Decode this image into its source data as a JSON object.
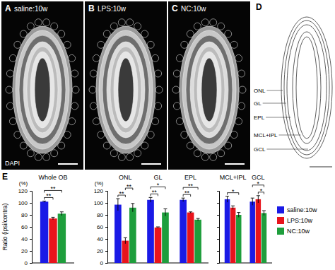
{
  "figure": {
    "image_panels": [
      {
        "letter": "A",
        "label": "saline:10w",
        "stain": "DAPI"
      },
      {
        "letter": "B",
        "label": "LPS:10w"
      },
      {
        "letter": "C",
        "label": "NC:10w"
      }
    ],
    "diagram": {
      "letter": "D",
      "layers": [
        "ONL",
        "GL",
        "EPL",
        "MCL+IPL",
        "GCL"
      ]
    },
    "chart_letter": "E"
  },
  "chart_data": [
    {
      "type": "bar",
      "y_label": "Ratio (ipsi/contra)",
      "y_unit": "(%)",
      "categories": [
        "Whole OB"
      ],
      "series": [
        {
          "color": "#1a1ae6",
          "values": [
            102
          ],
          "errors": [
            1
          ]
        },
        {
          "color": "#e8141c",
          "values": [
            74
          ],
          "errors": [
            2
          ]
        },
        {
          "color": "#1e9e3c",
          "values": [
            82
          ],
          "errors": [
            3
          ]
        }
      ],
      "ylim": [
        0,
        120
      ],
      "yticks": [
        0,
        20,
        40,
        60,
        80,
        100,
        120
      ],
      "annotations": [
        {
          "group": 0,
          "pair": [
            0,
            1
          ],
          "label": "**"
        },
        {
          "group": 0,
          "pair": [
            0,
            2
          ],
          "label": "**"
        }
      ]
    },
    {
      "type": "bar",
      "y_unit": "(%)",
      "categories": [
        "ONL",
        "GL",
        "EPL"
      ],
      "series": [
        {
          "color": "#1a1ae6",
          "values": [
            97,
            105,
            105
          ],
          "errors": [
            10,
            4,
            3
          ]
        },
        {
          "color": "#e8141c",
          "values": [
            37,
            59,
            84
          ],
          "errors": [
            5,
            1,
            1
          ]
        },
        {
          "color": "#1e9e3c",
          "values": [
            92,
            84,
            72
          ],
          "errors": [
            7,
            6,
            2
          ]
        }
      ],
      "ylim": [
        0,
        120
      ],
      "yticks": [
        0,
        20,
        40,
        60,
        80,
        100,
        120
      ],
      "annotations": [
        {
          "group": 0,
          "pair": [
            0,
            1
          ],
          "label": "**"
        },
        {
          "group": 0,
          "pair": [
            1,
            2
          ],
          "label": "**"
        },
        {
          "group": 1,
          "pair": [
            0,
            1
          ],
          "label": "**"
        },
        {
          "group": 1,
          "pair": [
            0,
            2
          ],
          "label": "*"
        },
        {
          "group": 2,
          "pair": [
            0,
            1
          ],
          "label": "**"
        },
        {
          "group": 2,
          "pair": [
            0,
            2
          ],
          "label": "**"
        }
      ]
    },
    {
      "type": "bar",
      "categories": [
        "MCL+IPL",
        "GCL"
      ],
      "series": [
        {
          "name": "saline:10w",
          "color": "#1a1ae6",
          "values": [
            106,
            102
          ],
          "errors": [
            5,
            6
          ]
        },
        {
          "name": "LPS:10w",
          "color": "#e8141c",
          "values": [
            92,
            106
          ],
          "errors": [
            3,
            6
          ]
        },
        {
          "name": "NC:10w",
          "color": "#1e9e3c",
          "values": [
            80,
            83
          ],
          "errors": [
            4,
            4
          ]
        }
      ],
      "ylim": [
        0,
        120
      ],
      "yticks": [
        0,
        20,
        40,
        60,
        80,
        100,
        120
      ],
      "tick_labels": "x",
      "legend": "right",
      "annotations": [
        {
          "group": 0,
          "pair": [
            0,
            2
          ],
          "label": "*"
        },
        {
          "group": 1,
          "pair": [
            1,
            2
          ],
          "label": "*"
        },
        {
          "group": 1,
          "pair": [
            0,
            2
          ],
          "label": "*"
        }
      ]
    }
  ]
}
